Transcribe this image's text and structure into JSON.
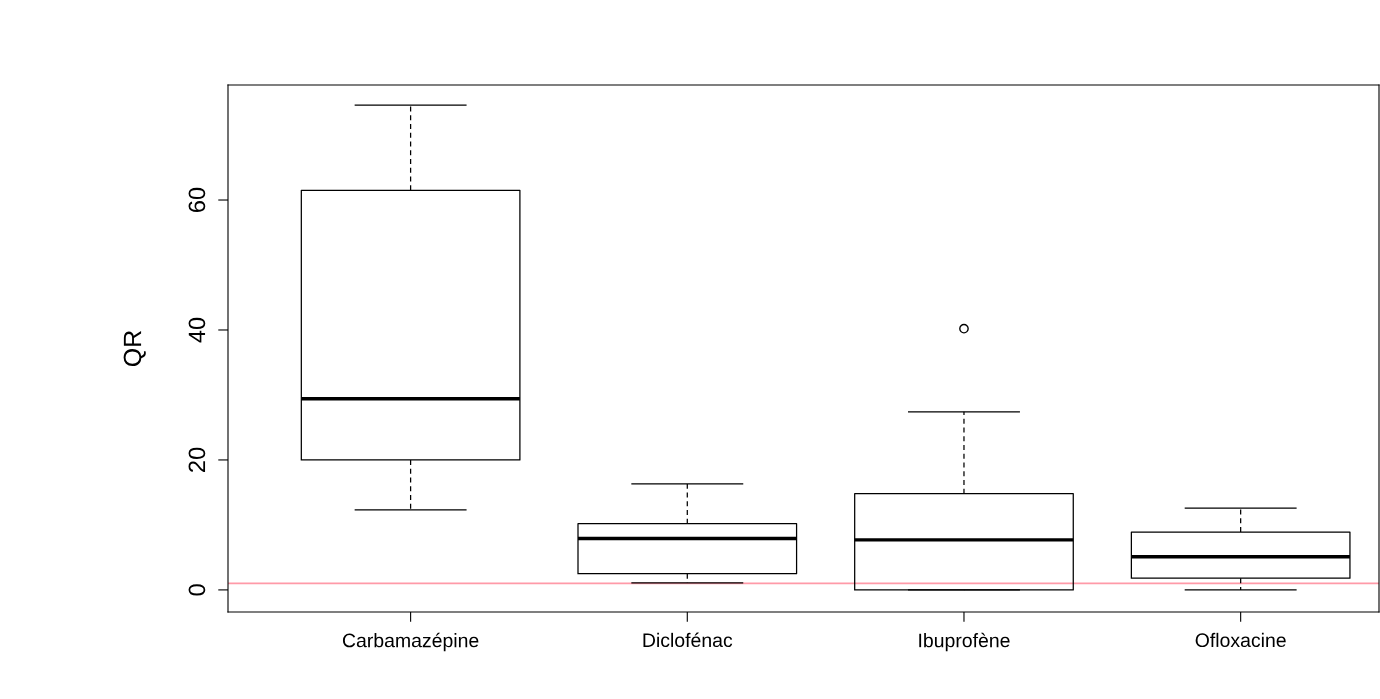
{
  "chart_data": {
    "type": "box",
    "ylabel": "QR",
    "categories": [
      "Carbamazépine",
      "Diclofénac",
      "Ibuprofène",
      "Ofloxacine"
    ],
    "boxes": [
      {
        "low": 12.3,
        "q1": 20,
        "median": 29.4,
        "q3": 61.5,
        "high": 74.6
      },
      {
        "low": 1.1,
        "q1": 2.5,
        "median": 7.9,
        "q3": 10.2,
        "high": 16.3
      },
      {
        "low": 0,
        "q1": 0,
        "median": 7.7,
        "q3": 14.8,
        "high": 27.4,
        "outliers": [
          40.2
        ]
      },
      {
        "low": 0,
        "q1": 1.8,
        "median": 5.1,
        "q3": 8.9,
        "high": 12.6
      }
    ],
    "ylim": [
      -3.4,
      77.7
    ],
    "yticks": [
      0,
      20,
      40,
      60
    ],
    "ref_lines": [
      {
        "axis": "y",
        "value": 1,
        "color": "#ff9aa8"
      }
    ],
    "grid": false,
    "legend": false
  }
}
